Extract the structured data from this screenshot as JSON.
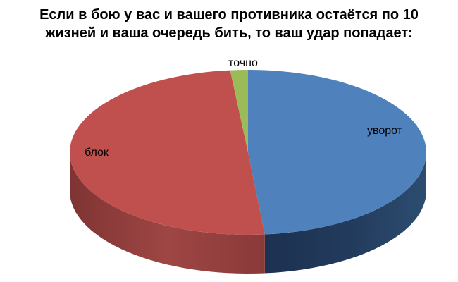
{
  "colors": {
    "background": "#FFFFFF",
    "text": "#000000"
  },
  "chart_data": {
    "type": "pie",
    "style": "3d",
    "title": "Если в бою у вас и вашего противника остаётся по 10 жизней и ваша очередь бить, то ваш удар попадает:",
    "title_lines": [
      "Если в бою у вас и вашего противника остаётся по 10",
      "жизней и ваша очередь бить, то ваш удар попадает:"
    ],
    "units": "percent_estimated",
    "start_angle_deg": 0,
    "direction": "clockwise",
    "legend": "none",
    "labels_on_chart": true,
    "series": [
      {
        "label": "уворот",
        "value": 48.5,
        "color": "#4F81BD",
        "side_colors": [
          "#1D3151",
          "#223A5C",
          "#2C4D70"
        ]
      },
      {
        "label": "блок",
        "value": 49.9,
        "color": "#C0504D",
        "side_colors": [
          "#7F3433",
          "#9E4644",
          "#8A3A39"
        ]
      },
      {
        "label": "точно",
        "value": 1.6,
        "color": "#9BBB59",
        "side_colors": [
          "#7FA04A"
        ]
      }
    ]
  }
}
